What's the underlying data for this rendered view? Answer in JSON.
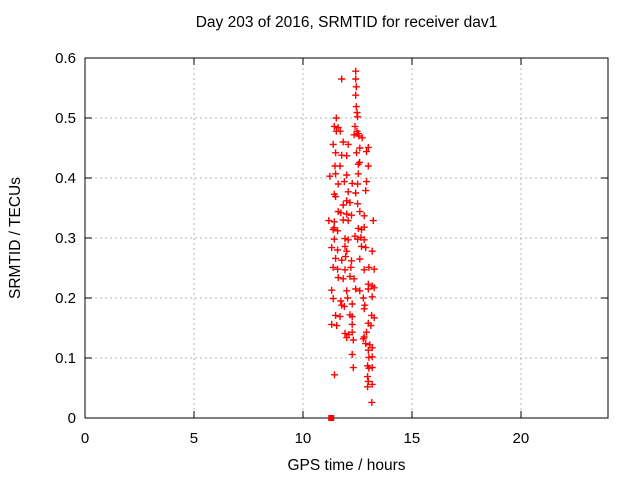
{
  "chart_data": {
    "type": "scatter",
    "title": "Day 203 of 2016, SRMTID for receiver dav1",
    "xlabel": "GPS time / hours",
    "ylabel": "SRMTID / TECUs",
    "xlim": [
      0,
      24
    ],
    "ylim": [
      0,
      0.6
    ],
    "x_ticks": [
      0,
      5,
      10,
      15,
      20
    ],
    "y_ticks": [
      0,
      0.1,
      0.2,
      0.3,
      0.4,
      0.5,
      0.6
    ],
    "grid": true,
    "legend_position": "none",
    "colors": {
      "marker": "#ff0000",
      "grid": "#b4b4b4",
      "axis": "#000000",
      "background": "#ffffff",
      "text": "#000000"
    },
    "series": [
      {
        "name": "srmtid-plus-markers",
        "marker": "plus",
        "points": [
          [
            11.78,
            0.565
          ],
          [
            12.42,
            0.578
          ],
          [
            12.42,
            0.565
          ],
          [
            12.45,
            0.552
          ],
          [
            12.42,
            0.538
          ],
          [
            12.45,
            0.519
          ],
          [
            12.48,
            0.509
          ],
          [
            12.51,
            0.502
          ],
          [
            11.53,
            0.5
          ],
          [
            11.44,
            0.486
          ],
          [
            11.62,
            0.484
          ],
          [
            11.53,
            0.478
          ],
          [
            11.71,
            0.478
          ],
          [
            12.39,
            0.486
          ],
          [
            12.48,
            0.478
          ],
          [
            12.54,
            0.474
          ],
          [
            12.35,
            0.472
          ],
          [
            12.57,
            0.47
          ],
          [
            12.72,
            0.467
          ],
          [
            11.39,
            0.456
          ],
          [
            11.85,
            0.46
          ],
          [
            12.08,
            0.456
          ],
          [
            12.61,
            0.45
          ],
          [
            13.0,
            0.451
          ],
          [
            11.5,
            0.442
          ],
          [
            11.78,
            0.438
          ],
          [
            12.01,
            0.437
          ],
          [
            12.46,
            0.442
          ],
          [
            12.92,
            0.444
          ],
          [
            11.47,
            0.42
          ],
          [
            11.7,
            0.42
          ],
          [
            12.54,
            0.423
          ],
          [
            12.6,
            0.426
          ],
          [
            13.0,
            0.42
          ],
          [
            11.24,
            0.403
          ],
          [
            11.5,
            0.407
          ],
          [
            12.01,
            0.405
          ],
          [
            12.54,
            0.407
          ],
          [
            11.62,
            0.39
          ],
          [
            11.9,
            0.394
          ],
          [
            12.26,
            0.391
          ],
          [
            12.51,
            0.39
          ],
          [
            12.92,
            0.394
          ],
          [
            11.44,
            0.373
          ],
          [
            11.5,
            0.369
          ],
          [
            12.08,
            0.377
          ],
          [
            12.42,
            0.375
          ],
          [
            12.88,
            0.379
          ],
          [
            12.01,
            0.362
          ],
          [
            12.16,
            0.359
          ],
          [
            11.85,
            0.355
          ],
          [
            12.51,
            0.357
          ],
          [
            11.62,
            0.344
          ],
          [
            11.74,
            0.342
          ],
          [
            12.01,
            0.34
          ],
          [
            12.23,
            0.338
          ],
          [
            12.61,
            0.344
          ],
          [
            12.81,
            0.337
          ],
          [
            11.19,
            0.329
          ],
          [
            11.44,
            0.327
          ],
          [
            11.85,
            0.33
          ],
          [
            12.08,
            0.329
          ],
          [
            13.23,
            0.329
          ],
          [
            11.39,
            0.314
          ],
          [
            11.43,
            0.317
          ],
          [
            11.59,
            0.312
          ],
          [
            12.54,
            0.316
          ],
          [
            12.69,
            0.314
          ],
          [
            12.81,
            0.318
          ],
          [
            11.44,
            0.298
          ],
          [
            11.93,
            0.299
          ],
          [
            12.08,
            0.297
          ],
          [
            12.39,
            0.303
          ],
          [
            12.51,
            0.298
          ],
          [
            12.66,
            0.301
          ],
          [
            12.81,
            0.297
          ],
          [
            11.32,
            0.284
          ],
          [
            11.59,
            0.28
          ],
          [
            11.93,
            0.286
          ],
          [
            12.01,
            0.278
          ],
          [
            12.69,
            0.286
          ],
          [
            12.88,
            0.284
          ],
          [
            13.18,
            0.278
          ],
          [
            11.5,
            0.266
          ],
          [
            11.78,
            0.263
          ],
          [
            11.96,
            0.269
          ],
          [
            12.23,
            0.262
          ],
          [
            12.61,
            0.265
          ],
          [
            11.39,
            0.251
          ],
          [
            11.59,
            0.248
          ],
          [
            11.93,
            0.247
          ],
          [
            12.2,
            0.251
          ],
          [
            12.81,
            0.247
          ],
          [
            13.03,
            0.251
          ],
          [
            13.27,
            0.248
          ],
          [
            11.62,
            0.234
          ],
          [
            11.85,
            0.232
          ],
          [
            12.16,
            0.236
          ],
          [
            12.35,
            0.232
          ],
          [
            13.0,
            0.223
          ],
          [
            13.18,
            0.22
          ],
          [
            11.32,
            0.213
          ],
          [
            12.01,
            0.212
          ],
          [
            12.42,
            0.215
          ],
          [
            12.61,
            0.212
          ],
          [
            13.0,
            0.215
          ],
          [
            13.27,
            0.217
          ],
          [
            11.39,
            0.199
          ],
          [
            11.74,
            0.195
          ],
          [
            12.05,
            0.2
          ],
          [
            12.77,
            0.2
          ],
          [
            13.18,
            0.202
          ],
          [
            11.78,
            0.188
          ],
          [
            11.9,
            0.186
          ],
          [
            12.26,
            0.19
          ],
          [
            12.84,
            0.188
          ],
          [
            12.81,
            0.182
          ],
          [
            11.5,
            0.171
          ],
          [
            11.7,
            0.169
          ],
          [
            12.16,
            0.172
          ],
          [
            12.26,
            0.169
          ],
          [
            13.15,
            0.171
          ],
          [
            13.27,
            0.167
          ],
          [
            11.32,
            0.156
          ],
          [
            11.55,
            0.154
          ],
          [
            12.26,
            0.156
          ],
          [
            13.0,
            0.158
          ],
          [
            13.12,
            0.154
          ],
          [
            11.93,
            0.141
          ],
          [
            12.11,
            0.139
          ],
          [
            12.26,
            0.143
          ],
          [
            12.92,
            0.143
          ],
          [
            12.81,
            0.135
          ],
          [
            12.01,
            0.134
          ],
          [
            12.31,
            0.13
          ],
          [
            12.77,
            0.132
          ],
          [
            12.88,
            0.124
          ],
          [
            13.07,
            0.122
          ],
          [
            13.18,
            0.117
          ],
          [
            13.0,
            0.113
          ],
          [
            12.26,
            0.106
          ],
          [
            13.03,
            0.101
          ],
          [
            13.18,
            0.102
          ],
          [
            12.31,
            0.084
          ],
          [
            11.45,
            0.072
          ],
          [
            12.97,
            0.087
          ],
          [
            13.03,
            0.083
          ],
          [
            13.18,
            0.084
          ],
          [
            12.97,
            0.069
          ],
          [
            13.0,
            0.061
          ],
          [
            13.18,
            0.056
          ],
          [
            12.97,
            0.052
          ],
          [
            13.16,
            0.026
          ]
        ]
      },
      {
        "name": "zero-square-marker",
        "marker": "filled-square",
        "points": [
          [
            11.3,
            0
          ]
        ]
      }
    ]
  }
}
